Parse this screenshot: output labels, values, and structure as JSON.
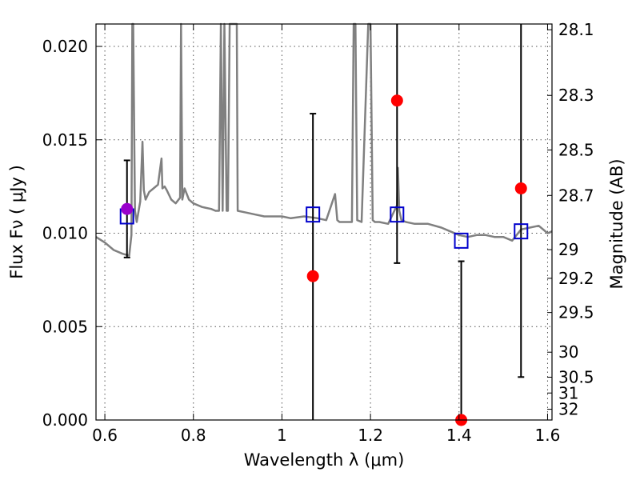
{
  "chart_data": {
    "type": "scatter",
    "title": "",
    "xlabel": "Wavelength  λ (μm)",
    "ylabel": "Flux  Fν  ( μJy )",
    "y2label": "Magnitude (AB)",
    "xlim": [
      0.58,
      1.61
    ],
    "ylim": [
      0.0,
      0.0212
    ],
    "grid": true,
    "x_ticks": [
      0.6,
      0.8,
      1.0,
      1.2,
      1.4,
      1.6
    ],
    "x_tick_labels": [
      "0.6",
      "0.8",
      "1",
      "1.2",
      "1.4",
      "1.6"
    ],
    "y_ticks": [
      0.0,
      0.005,
      0.01,
      0.015,
      0.02
    ],
    "y_tick_labels": [
      "0.000",
      "0.005",
      "0.010",
      "0.015",
      "0.020"
    ],
    "y2_ticks": [
      "28.1",
      "28.3",
      "28.5",
      "28.7",
      "29",
      "29.2",
      "29.5",
      "30",
      "30.5",
      "31",
      "32"
    ],
    "colors": {
      "model": "#808080",
      "observed": "#ff0000",
      "model_phot": "#0000cc",
      "highlight": "#9900cc",
      "errorbar": "#000000",
      "grid": "#555555"
    },
    "series": [
      {
        "type": "line",
        "x": [
          0.58,
          0.6,
          0.62,
          0.64,
          0.655,
          0.66,
          0.662,
          0.664,
          0.668,
          0.672,
          0.68,
          0.685,
          0.688,
          0.692,
          0.7,
          0.71,
          0.72,
          0.728,
          0.73,
          0.735,
          0.74,
          0.75,
          0.76,
          0.77,
          0.772,
          0.775,
          0.78,
          0.79,
          0.8,
          0.82,
          0.84,
          0.85,
          0.858,
          0.862,
          0.866,
          0.87,
          0.875,
          0.878,
          0.882,
          0.886,
          0.89,
          0.894,
          0.898,
          0.9,
          0.92,
          0.94,
          0.96,
          0.98,
          1.0,
          1.02,
          1.05,
          1.08,
          1.1,
          1.12,
          1.125,
          1.13,
          1.15,
          1.158,
          1.162,
          1.166,
          1.17,
          1.18,
          1.195,
          1.2,
          1.205,
          1.21,
          1.22,
          1.24,
          1.26,
          1.262,
          1.265,
          1.27,
          1.28,
          1.3,
          1.33,
          1.36,
          1.38,
          1.4,
          1.42,
          1.44,
          1.46,
          1.48,
          1.5,
          1.52,
          1.54,
          1.56,
          1.58,
          1.6,
          1.61
        ],
        "y": [
          0.0098,
          0.0095,
          0.0091,
          0.0089,
          0.0088,
          0.0099,
          0.0212,
          0.0212,
          0.0112,
          0.0106,
          0.0117,
          0.0149,
          0.0123,
          0.0118,
          0.0122,
          0.0124,
          0.0126,
          0.014,
          0.0124,
          0.0125,
          0.0123,
          0.0118,
          0.0116,
          0.0119,
          0.0212,
          0.0118,
          0.0124,
          0.0118,
          0.0116,
          0.0114,
          0.0113,
          0.0112,
          0.0112,
          0.0212,
          0.0112,
          0.0212,
          0.0112,
          0.0112,
          0.0212,
          0.0212,
          0.0212,
          0.0212,
          0.0212,
          0.0112,
          0.0111,
          0.011,
          0.0109,
          0.0109,
          0.0109,
          0.0108,
          0.0109,
          0.0108,
          0.0107,
          0.0121,
          0.0107,
          0.0106,
          0.0106,
          0.0106,
          0.0212,
          0.0212,
          0.0107,
          0.0106,
          0.0212,
          0.0212,
          0.0107,
          0.0106,
          0.0106,
          0.0105,
          0.0115,
          0.0135,
          0.0112,
          0.0107,
          0.0106,
          0.0105,
          0.0105,
          0.0103,
          0.0101,
          0.0099,
          0.0098,
          0.0099,
          0.0099,
          0.0098,
          0.0098,
          0.0096,
          0.0102,
          0.0103,
          0.0104,
          0.01,
          0.0101
        ]
      },
      {
        "type": "scatter",
        "marker": "circle",
        "x": [
          1.07,
          1.26,
          1.405,
          1.54
        ],
        "y": [
          0.0077,
          0.0171,
          0.0,
          0.0124
        ]
      },
      {
        "type": "scatter",
        "marker": "circle",
        "x": [
          0.65
        ],
        "y": [
          0.0113
        ]
      },
      {
        "type": "scatter",
        "marker": "square-open",
        "x": [
          0.65,
          1.07,
          1.26,
          1.405,
          1.54
        ],
        "y": [
          0.0109,
          0.011,
          0.011,
          0.0096,
          0.0101
        ]
      }
    ],
    "errorbars": [
      {
        "x": 0.65,
        "low": 0.0087,
        "high": 0.0139
      },
      {
        "x": 1.07,
        "low": 0.0,
        "high": 0.0164
      },
      {
        "x": 1.26,
        "low": 0.0084,
        "high": 0.0212
      },
      {
        "x": 1.405,
        "low": 0.0,
        "high": 0.0085
      },
      {
        "x": 1.54,
        "low": 0.0023,
        "high": 0.0212
      }
    ]
  }
}
